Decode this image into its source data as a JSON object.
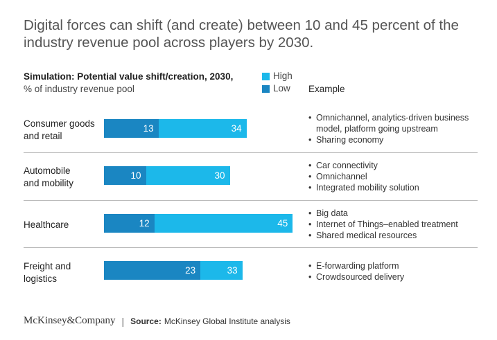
{
  "chart_data": {
    "type": "bar",
    "orientation": "horizontal",
    "stacked": true,
    "title": "Digital forces can shift (and create) between 10 and 45 percent of the industry revenue pool across players by 2030.",
    "subtitle_bold": "Simulation: Potential value shift/creation, 2030,",
    "subtitle_light": "% of industry revenue pool",
    "example_header": "Example",
    "legend": [
      {
        "name": "High",
        "color": "#1cb8ea"
      },
      {
        "name": "Low",
        "color": "#1a86c2"
      }
    ],
    "xlim": [
      0,
      45
    ],
    "categories": [
      {
        "label_lines": [
          "Consumer goods",
          "and retail"
        ],
        "low": 13,
        "high": 34,
        "examples": [
          "Omnichannel, analytics-driven business model, platform going upstream",
          "Sharing economy"
        ]
      },
      {
        "label_lines": [
          "Automobile",
          "and mobility"
        ],
        "low": 10,
        "high": 30,
        "examples": [
          "Car connectivity",
          "Omnichannel",
          "Integrated mobility solution"
        ]
      },
      {
        "label_lines": [
          "Healthcare"
        ],
        "low": 12,
        "high": 45,
        "examples": [
          "Big data",
          "Internet of Things–enabled treatment",
          "Shared medical resources"
        ]
      },
      {
        "label_lines": [
          "Freight and",
          "logistics"
        ],
        "low": 23,
        "high": 33,
        "examples": [
          "E-forwarding platform",
          "Crowdsourced delivery"
        ]
      }
    ]
  },
  "footer": {
    "logo": "McKinsey&Company",
    "separator": "|",
    "source_label": "Source:",
    "source_text": "McKinsey Global Institute analysis"
  }
}
